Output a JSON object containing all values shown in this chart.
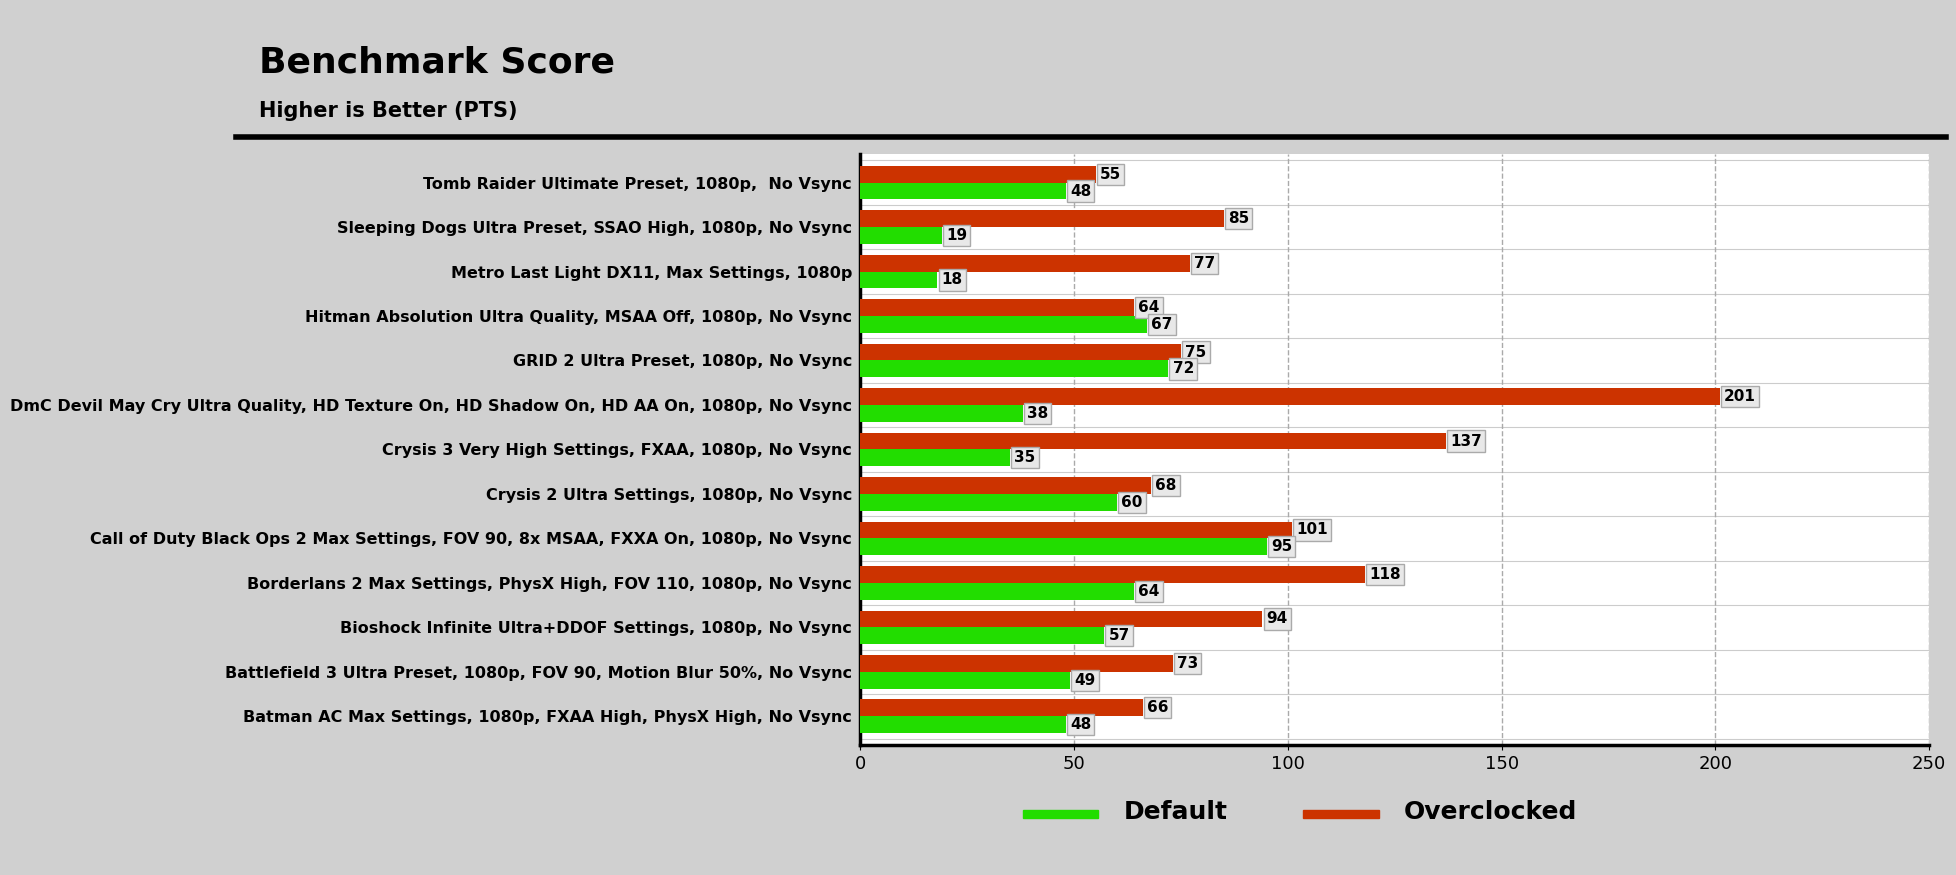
{
  "title": "Benchmark Score",
  "subtitle": "Higher is Better (PTS)",
  "categories": [
    "Tomb Raider Ultimate Preset, 1080p,  No Vsync",
    "Sleeping Dogs Ultra Preset, SSAO High, 1080p, No Vsync",
    "Metro Last Light DX11, Max Settings, 1080p",
    "Hitman Absolution Ultra Quality, MSAA Off, 1080p, No Vsync",
    "GRID 2 Ultra Preset, 1080p, No Vsync",
    "DmC Devil May Cry Ultra Quality, HD Texture On, HD Shadow On, HD AA On, 1080p, No Vsync",
    "Crysis 3 Very High Settings, FXAA, 1080p, No Vsync",
    "Crysis 2 Ultra Settings, 1080p, No Vsync",
    "Call of Duty Black Ops 2 Max Settings, FOV 90, 8x MSAA, FXXA On, 1080p, No Vsync",
    "Borderlans 2 Max Settings, PhysX High, FOV 110, 1080p, No Vsync",
    "Bioshock Infinite Ultra+DDOF Settings, 1080p, No Vsync",
    "Battlefield 3 Ultra Preset, 1080p, FOV 90, Motion Blur 50%, No Vsync",
    "Batman AC Max Settings, 1080p, FXAA High, PhysX High, No Vsync"
  ],
  "default_values": [
    48,
    19,
    18,
    67,
    72,
    38,
    35,
    60,
    95,
    64,
    57,
    49,
    48
  ],
  "overclocked_values": [
    55,
    85,
    77,
    64,
    75,
    201,
    137,
    68,
    101,
    118,
    94,
    73,
    66
  ],
  "default_color": "#22dd00",
  "overclocked_color": "#cc3300",
  "bar_height": 0.38,
  "xlim": [
    0,
    250
  ],
  "xticks": [
    0,
    50,
    100,
    150,
    200,
    250
  ],
  "header_bg": "#d0d0d0",
  "plot_bg": "#ffffff",
  "outer_bg": "#d0d0d0",
  "legend_bg": "#d0d0d0",
  "title_fontsize": 26,
  "subtitle_fontsize": 15,
  "label_fontsize": 11.5,
  "tick_fontsize": 13,
  "annotation_fontsize": 11,
  "legend_fontsize": 18
}
